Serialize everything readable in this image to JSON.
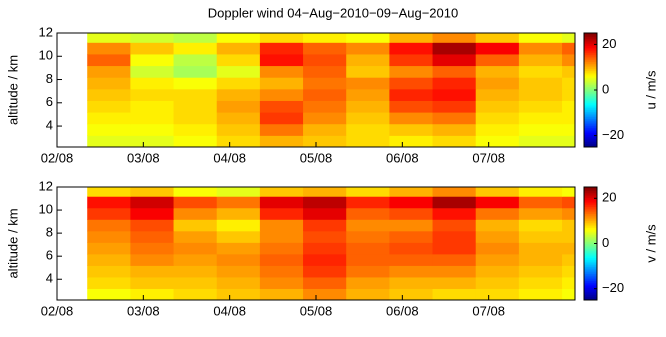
{
  "chart_data": [
    {
      "type": "heatmap",
      "title": "Doppler wind 04−Aug−2010−09−Aug−2010",
      "ylabel": "altitude / km",
      "colorbar_label": "u / m/s",
      "x": [
        2.6,
        3.1,
        3.6,
        4.1,
        4.6,
        5.1,
        5.6,
        6.1,
        6.6,
        7.1,
        7.6,
        8.1
      ],
      "y": [
        2.7,
        3.7,
        4.7,
        5.7,
        6.7,
        7.7,
        8.7,
        9.7,
        10.7,
        11.7
      ],
      "z": [
        [
          5,
          5,
          6,
          8,
          10,
          9,
          8,
          7,
          8,
          6,
          5,
          5
        ],
        [
          6,
          6,
          7,
          9,
          13,
          10,
          8,
          9,
          10,
          7,
          6,
          6
        ],
        [
          7,
          7,
          8,
          10,
          16,
          12,
          9,
          12,
          13,
          8,
          7,
          7
        ],
        [
          8,
          7,
          8,
          11,
          15,
          13,
          10,
          15,
          16,
          9,
          8,
          7
        ],
        [
          9,
          8,
          8,
          10,
          12,
          14,
          11,
          17,
          18,
          10,
          9,
          8
        ],
        [
          10,
          7,
          6,
          8,
          10,
          13,
          12,
          15,
          17,
          11,
          9,
          8
        ],
        [
          11,
          4,
          2,
          5,
          12,
          14,
          9,
          12,
          14,
          10,
          8,
          9
        ],
        [
          14,
          6,
          3,
          8,
          18,
          15,
          10,
          16,
          20,
          14,
          10,
          12
        ],
        [
          12,
          9,
          7,
          10,
          17,
          14,
          12,
          18,
          23,
          19,
          12,
          14
        ],
        [
          5,
          4,
          3,
          6,
          8,
          7,
          6,
          10,
          12,
          9,
          6,
          5
        ]
      ],
      "xlim": [
        2,
        8
      ],
      "ylim": [
        2.2,
        12
      ],
      "clim": [
        -25,
        25
      ],
      "xticks": [
        {
          "value": 2,
          "label": "02/08"
        },
        {
          "value": 3,
          "label": "03/08"
        },
        {
          "value": 4,
          "label": "04/08"
        },
        {
          "value": 5,
          "label": "05/08"
        },
        {
          "value": 6,
          "label": "06/08"
        },
        {
          "value": 7,
          "label": "07/08"
        }
      ],
      "yticks": [
        4,
        6,
        8,
        10,
        12
      ],
      "cticks": [
        {
          "value": -20,
          "label": "−20"
        },
        0,
        20
      ],
      "colormap": "jet"
    },
    {
      "type": "heatmap",
      "ylabel": "altitude / km",
      "colorbar_label": "v / m/s",
      "x": [
        2.6,
        3.1,
        3.6,
        4.1,
        4.6,
        5.1,
        5.6,
        6.1,
        6.6,
        7.1,
        7.6,
        8.1
      ],
      "y": [
        2.7,
        3.7,
        4.7,
        5.7,
        6.7,
        7.7,
        8.7,
        9.7,
        10.7,
        11.7
      ],
      "z": [
        [
          6,
          7,
          8,
          9,
          10,
          12,
          10,
          9,
          8,
          8,
          7,
          6
        ],
        [
          8,
          9,
          9,
          10,
          12,
          14,
          11,
          10,
          10,
          9,
          8,
          7
        ],
        [
          9,
          10,
          10,
          11,
          13,
          16,
          13,
          12,
          12,
          10,
          9,
          8
        ],
        [
          10,
          12,
          11,
          12,
          14,
          17,
          14,
          14,
          14,
          11,
          10,
          9
        ],
        [
          11,
          13,
          12,
          11,
          13,
          16,
          14,
          15,
          16,
          12,
          10,
          10
        ],
        [
          12,
          14,
          11,
          9,
          12,
          15,
          13,
          14,
          16,
          11,
          9,
          9
        ],
        [
          13,
          15,
          9,
          7,
          12,
          16,
          12,
          12,
          15,
          10,
          8,
          9
        ],
        [
          16,
          19,
          12,
          10,
          17,
          20,
          14,
          15,
          18,
          13,
          11,
          12
        ],
        [
          18,
          21,
          15,
          13,
          20,
          22,
          17,
          19,
          23,
          19,
          14,
          15
        ],
        [
          8,
          9,
          6,
          5,
          9,
          10,
          8,
          10,
          12,
          9,
          7,
          6
        ]
      ],
      "xlim": [
        2,
        8
      ],
      "ylim": [
        2.2,
        12
      ],
      "clim": [
        -25,
        25
      ],
      "xticks": [
        {
          "value": 2,
          "label": "02/08"
        },
        {
          "value": 3,
          "label": "03/08"
        },
        {
          "value": 4,
          "label": "04/08"
        },
        {
          "value": 5,
          "label": "05/08"
        },
        {
          "value": 6,
          "label": "06/08"
        },
        {
          "value": 7,
          "label": "07/08"
        }
      ],
      "yticks": [
        4,
        6,
        8,
        10,
        12
      ],
      "cticks": [
        {
          "value": -20,
          "label": "−20"
        },
        0,
        20
      ],
      "colormap": "jet"
    }
  ]
}
